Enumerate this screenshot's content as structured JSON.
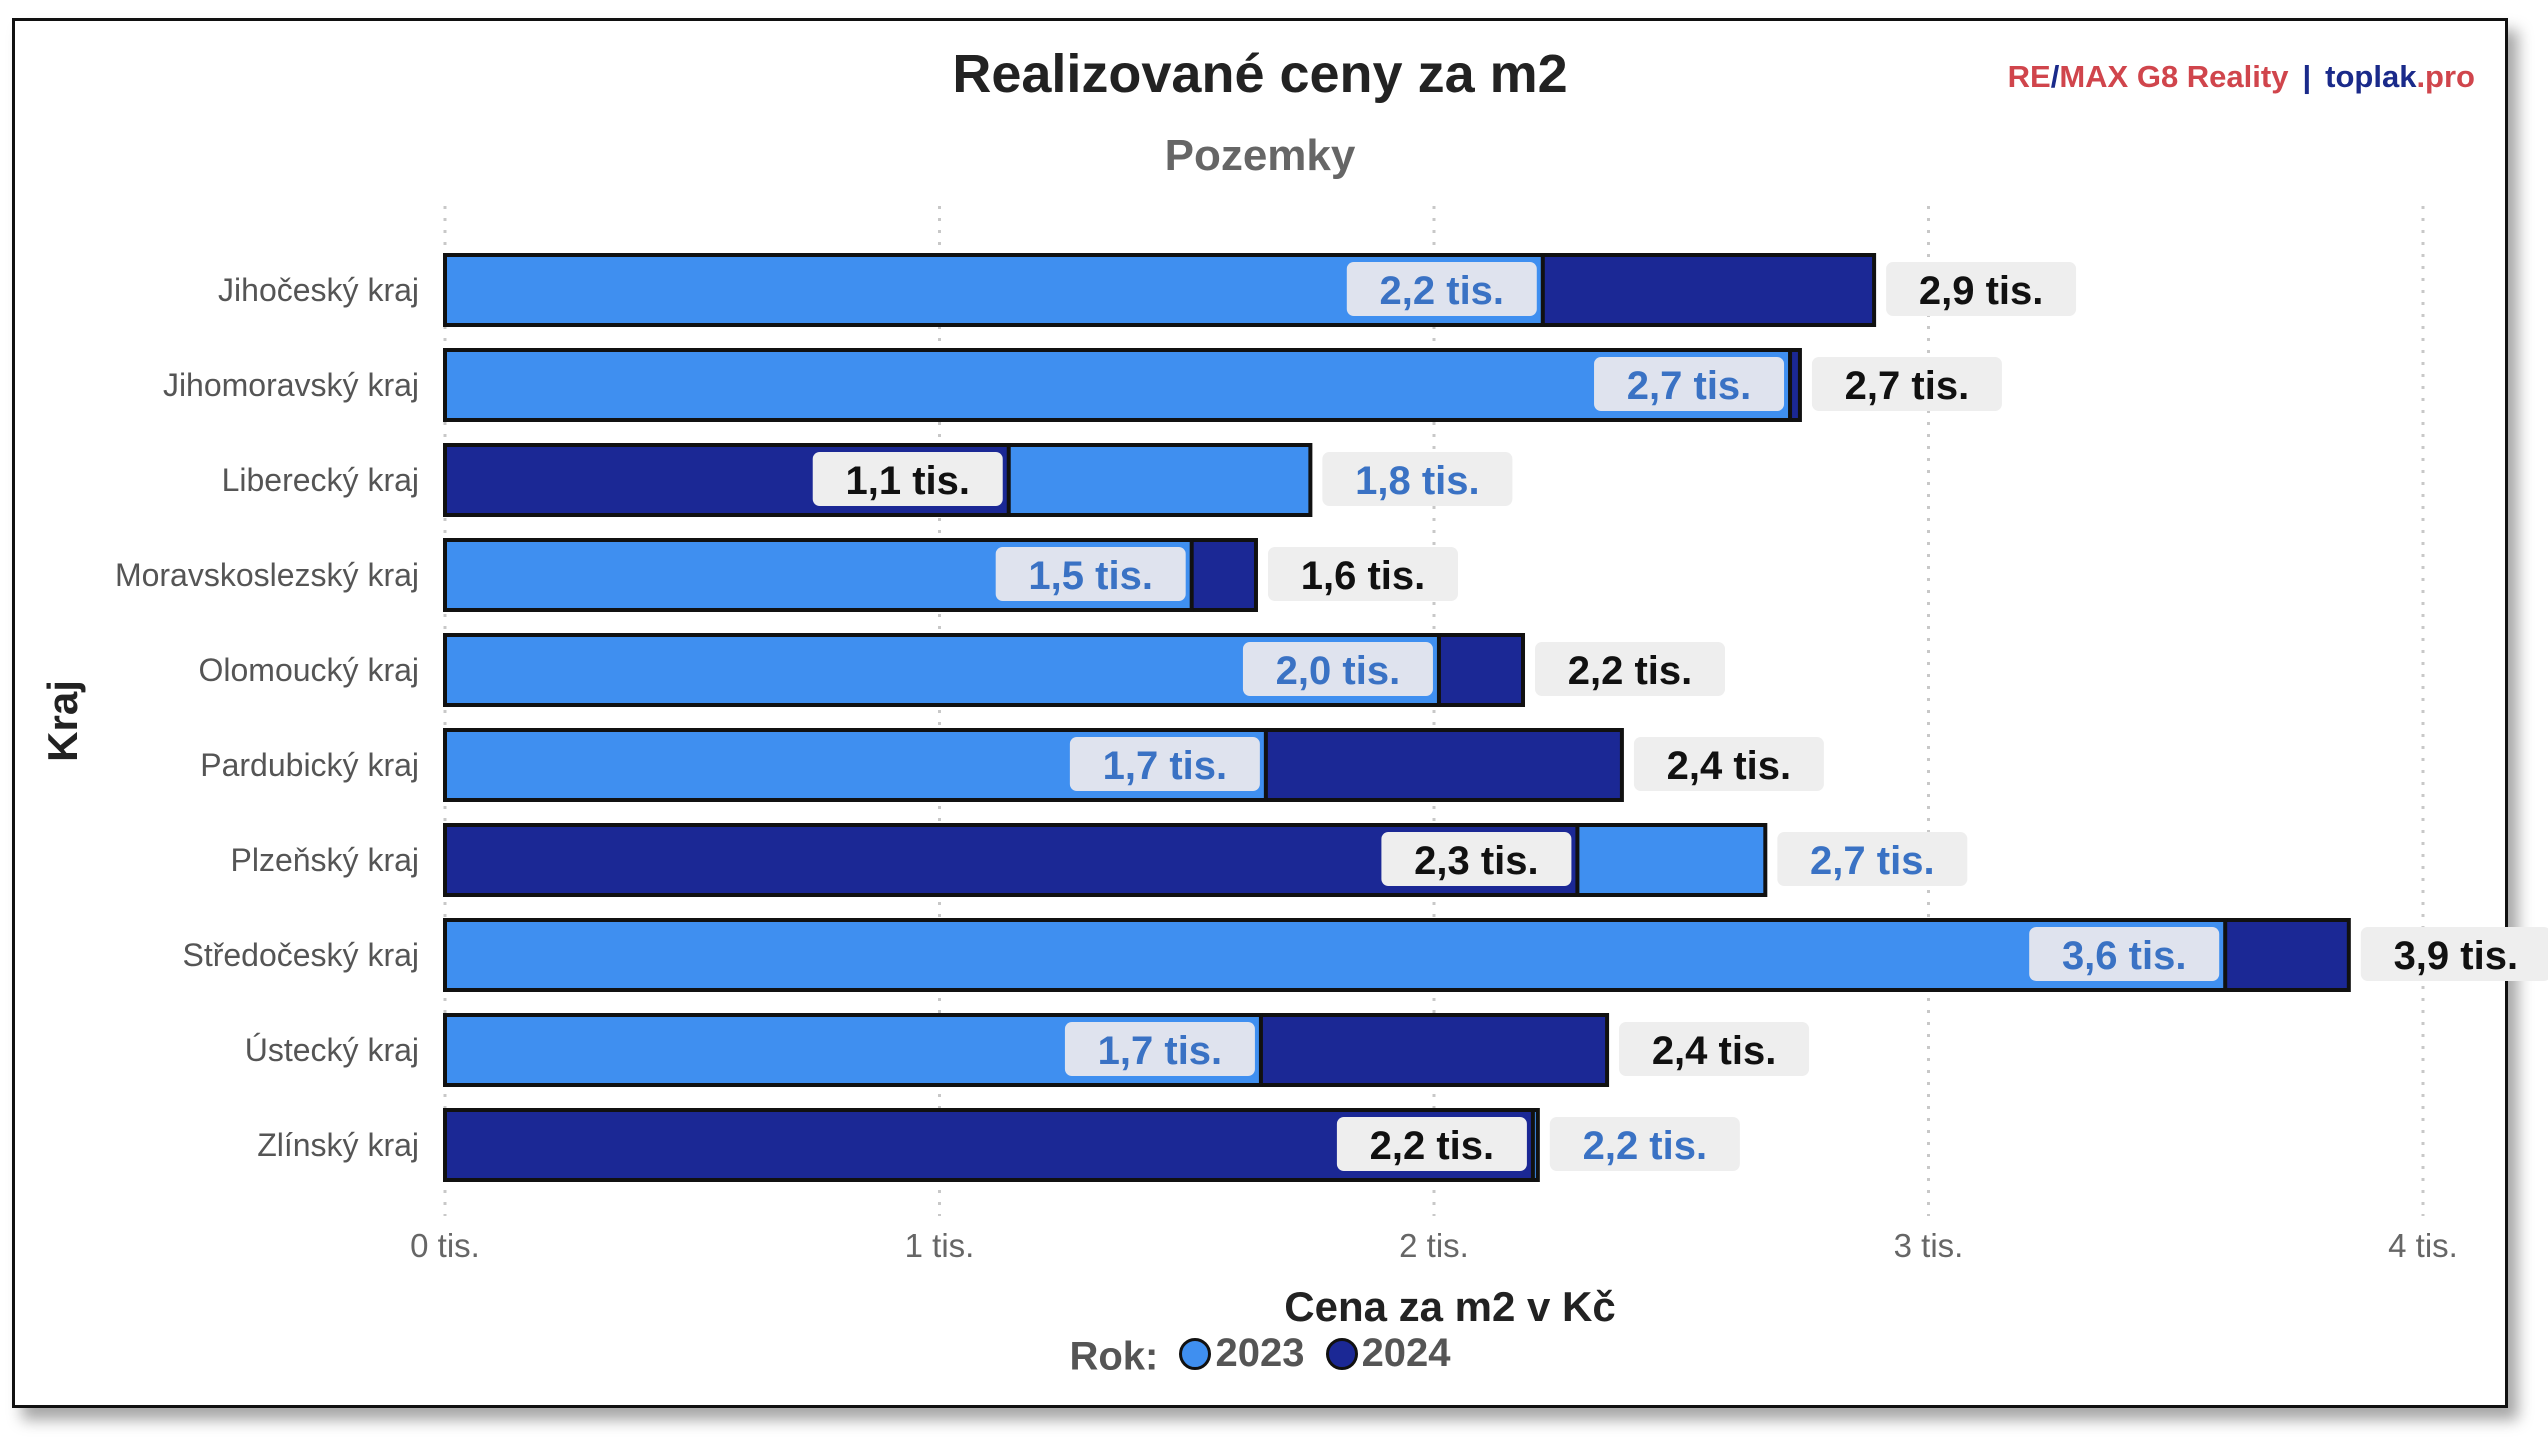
{
  "header": {
    "title": "Realizované ceny za m2",
    "subtitle": "Pozemky",
    "brand_a": "RE",
    "brand_b": "/",
    "brand_c": "MAX G8 Reality",
    "brand_sep": "|",
    "brand_d": "toplak",
    "brand_e": ".pro"
  },
  "colors": {
    "s2023": "#3f8ff0",
    "s2024": "#1b2895",
    "label_bg_dark": "#eeeeee",
    "label_bg_light": "#dfe3ee",
    "text_2023": "#3a72c4",
    "text_2024": "#111111"
  },
  "chart_data": {
    "type": "bar",
    "orientation": "horizontal",
    "title": "Realizované ceny za m2",
    "subtitle": "Pozemky",
    "xlabel": "Cena za m2 v Kč",
    "ylabel": "Kraj",
    "xlim": [
      0,
      4000
    ],
    "xticks": [
      0,
      1000,
      2000,
      3000,
      4000
    ],
    "xtick_labels": [
      "0 tis.",
      "1 tis.",
      "2 tis.",
      "3 tis.",
      "4 tis."
    ],
    "grid": "vertical dotted",
    "legend_title": "Rok:",
    "legend_position": "bottom",
    "categories": [
      "Jihočeský kraj",
      "Jihomoravský kraj",
      "Liberecký kraj",
      "Moravskoslezský kraj",
      "Olomoucký kraj",
      "Pardubický kraj",
      "Plzeňský kraj",
      "Středočeský kraj",
      "Ústecký kraj",
      "Zlínský kraj"
    ],
    "series": [
      {
        "name": "2023",
        "values": [
          2220,
          2720,
          1750,
          1510,
          2010,
          1660,
          2670,
          3600,
          1650,
          2210
        ],
        "labels": [
          "2,2 tis.",
          "2,7 tis.",
          "1,8 tis.",
          "1,5 tis.",
          "2,0 tis.",
          "1,7 tis.",
          "2,7 tis.",
          "3,6 tis.",
          "1,7 tis.",
          "2,2 tis."
        ]
      },
      {
        "name": "2024",
        "values": [
          2890,
          2740,
          1140,
          1640,
          2180,
          2380,
          2290,
          3850,
          2350,
          2200
        ],
        "labels": [
          "2,9 tis.",
          "2,7 tis.",
          "1,1 tis.",
          "1,6 tis.",
          "2,2 tis.",
          "2,4 tis.",
          "2,3 tis.",
          "3,9 tis.",
          "2,4 tis.",
          "2,2 tis."
        ]
      }
    ]
  }
}
